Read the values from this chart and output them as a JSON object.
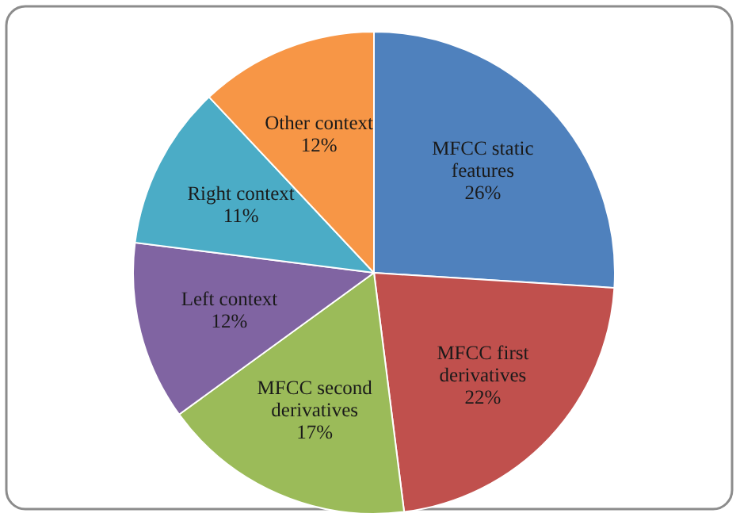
{
  "chart_data": {
    "type": "pie",
    "categories": [
      "MFCC static features",
      "MFCC first derivatives",
      "MFCC second derivatives",
      "Left context",
      "Right context",
      "Other context"
    ],
    "values": [
      26,
      22,
      17,
      12,
      11,
      12
    ],
    "colors": [
      "#4f81bd",
      "#c0504d",
      "#9bbb59",
      "#8064a2",
      "#4bacc6",
      "#f79646"
    ],
    "value_labels": [
      "26%",
      "22%",
      "17%",
      "12%",
      "11%",
      "12%"
    ]
  }
}
